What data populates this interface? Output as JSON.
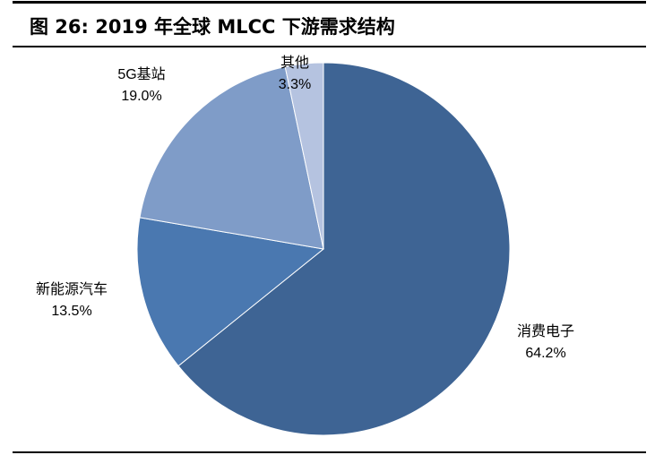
{
  "title": "图 26:  2019 年全球 MLCC 下游需求结构",
  "chart_data": {
    "type": "pie",
    "title": "图 26:  2019 年全球 MLCC 下游需求结构",
    "slices": [
      {
        "label": "消费电子",
        "value": 64.2,
        "text": "64.2%",
        "color": "#3e6494"
      },
      {
        "label": "新能源汽车",
        "value": 13.5,
        "text": "13.5%",
        "color": "#4a78b0"
      },
      {
        "label": "5G基站",
        "value": 19.0,
        "text": "19.0%",
        "color": "#7f9cc8"
      },
      {
        "label": "其他",
        "value": 3.3,
        "text": "3.3%",
        "color": "#b5c3e0"
      }
    ],
    "start": "12 o'clock",
    "direction": "clockwise"
  }
}
